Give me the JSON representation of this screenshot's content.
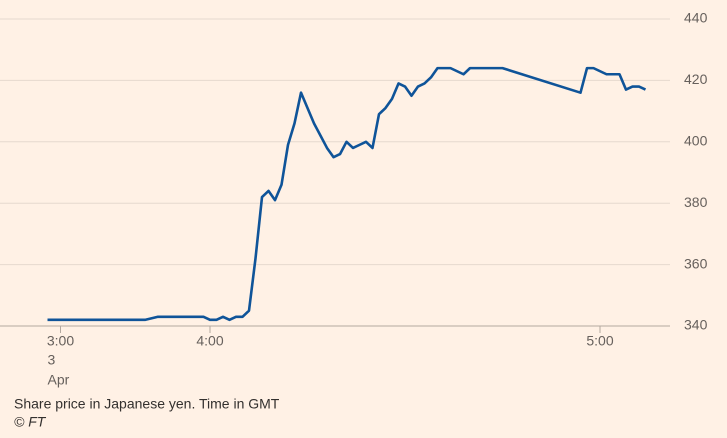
{
  "chart_data": {
    "type": "line",
    "x": [
      0,
      15,
      17,
      24,
      25,
      26,
      27,
      28,
      29,
      30,
      31,
      32,
      33,
      34,
      35,
      36,
      37,
      38,
      39,
      40,
      41,
      42,
      43,
      44,
      45,
      46,
      47,
      48,
      49,
      50,
      51,
      52,
      53,
      54,
      55,
      56,
      57,
      58,
      59,
      60,
      62,
      64,
      65,
      70,
      82,
      83,
      84,
      86,
      88,
      89,
      90,
      91,
      92
    ],
    "series": [
      {
        "color": "#0f5499",
        "values": [
          342,
          342,
          343,
          343,
          342,
          342,
          343,
          342,
          343,
          343,
          345,
          362,
          382,
          384,
          381,
          386,
          399,
          406,
          416,
          411,
          406,
          402,
          398,
          395,
          396,
          400,
          398,
          399,
          400,
          398,
          409,
          411,
          414,
          419,
          418,
          415,
          418,
          419,
          421,
          424,
          424,
          422,
          424,
          424,
          416,
          424,
          424,
          422,
          422,
          417,
          418,
          418,
          417
        ]
      }
    ],
    "xlim": [
      -5,
      95
    ],
    "xticks": [
      {
        "value": 2,
        "label": "3:00"
      },
      {
        "value": 25,
        "label": "4:00"
      },
      {
        "value": 85,
        "label": "5:00"
      }
    ],
    "date_label": [
      "3",
      "Apr"
    ],
    "ylim": [
      340,
      440
    ],
    "yticks": [
      340,
      360,
      380,
      400,
      420,
      440
    ],
    "grid": true,
    "source_note": "Share price in Japanese yen. Time in GMT",
    "credit": "© FT"
  }
}
